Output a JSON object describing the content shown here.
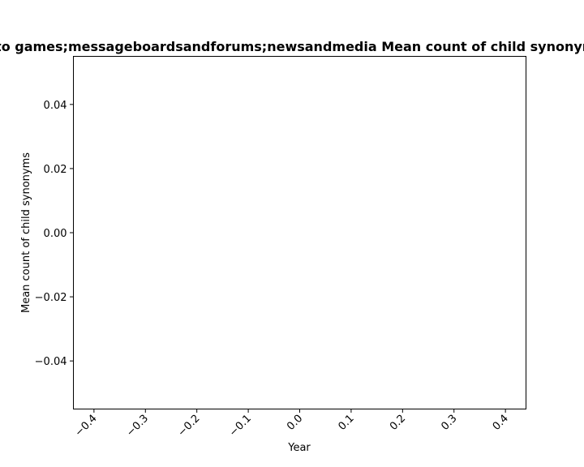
{
  "chart_data": {
    "type": "line",
    "title": "to games;messageboardsandforums;newsandmedia Mean count of child synonyms",
    "xlabel": "Year",
    "ylabel": "Mean count of child synonyms",
    "xlim": [
      -0.44,
      0.44
    ],
    "ylim": [
      -0.055,
      0.055
    ],
    "xticks": [
      -0.4,
      -0.3,
      -0.2,
      -0.1,
      0.0,
      0.1,
      0.2,
      0.3,
      0.4
    ],
    "xtick_labels": [
      "−0.4",
      "−0.3",
      "−0.2",
      "−0.1",
      "0.0",
      "0.1",
      "0.2",
      "0.3",
      "0.4"
    ],
    "yticks": [
      0.04,
      0.02,
      0.0,
      -0.02,
      -0.04
    ],
    "ytick_labels": [
      "0.04",
      "0.02",
      "0.00",
      "−0.02",
      "−0.04"
    ],
    "xtick_rotation_deg": -45,
    "grid": false,
    "series": []
  }
}
